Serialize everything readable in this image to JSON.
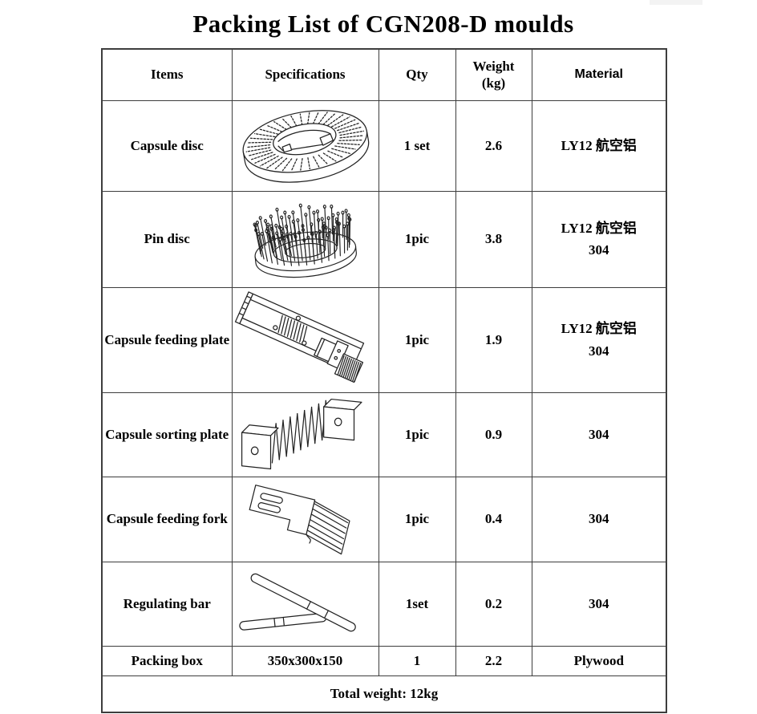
{
  "page_title": "Packing List of CGN208-D moulds",
  "table": {
    "headers": {
      "items": "Items",
      "specifications": "Specifications",
      "qty": "Qty",
      "weight_line1": "Weight",
      "weight_line2": "(kg)",
      "material": "Material"
    },
    "rows": [
      {
        "item": "Capsule disc",
        "image": "capsule-disc-drawing",
        "qty": "1 set",
        "weight": "2.6",
        "material_lines": [
          "LY12 航空铝"
        ]
      },
      {
        "item": "Pin disc",
        "image": "pin-disc-drawing",
        "qty": "1pic",
        "weight": "3.8",
        "material_lines": [
          "LY12 航空铝",
          "304"
        ]
      },
      {
        "item": "Capsule feeding plate",
        "image": "capsule-feeding-plate-drawing",
        "qty": "1pic",
        "weight": "1.9",
        "material_lines": [
          "LY12 航空铝",
          "304"
        ]
      },
      {
        "item": "Capsule sorting plate",
        "image": "capsule-sorting-plate-drawing",
        "qty": "1pic",
        "weight": "0.9",
        "material_lines": [
          "304"
        ]
      },
      {
        "item": "Capsule feeding fork",
        "image": "capsule-feeding-fork-drawing",
        "qty": "1pic",
        "weight": "0.4",
        "material_lines": [
          "304"
        ]
      },
      {
        "item": "Regulating bar",
        "image": "regulating-bar-drawing",
        "qty": "1set",
        "weight": "0.2",
        "material_lines": [
          "304"
        ]
      },
      {
        "item": "Packing box",
        "spec_text": "350x300x150",
        "qty": "1",
        "weight": "2.2",
        "material_lines": [
          "Plywood"
        ]
      }
    ],
    "total": "Total weight: 12kg"
  }
}
